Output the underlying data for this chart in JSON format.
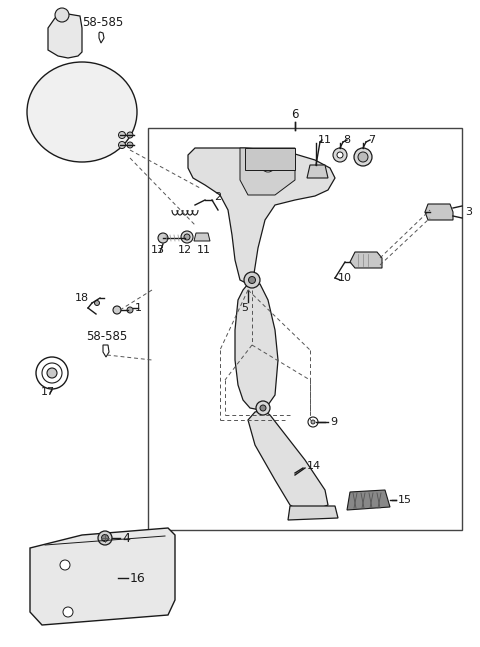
{
  "bg_color": "#ffffff",
  "lc": "#1a1a1a",
  "fc_light": "#e8e8e8",
  "fc_white": "#ffffff",
  "fig_width": 4.8,
  "fig_height": 6.47,
  "dpi": 100,
  "labels": {
    "58_585_top": "58-585",
    "6": "6",
    "7": "7",
    "8": "8",
    "11a": "11",
    "3": "3",
    "2": "2",
    "5": "5",
    "10": "10",
    "9": "9",
    "14": "14",
    "15": "15",
    "1": "1",
    "18": "18",
    "58_585_mid": "58-585",
    "17": "17",
    "11b": "11",
    "12": "12",
    "13": "13",
    "4": "4",
    "16": "16"
  }
}
